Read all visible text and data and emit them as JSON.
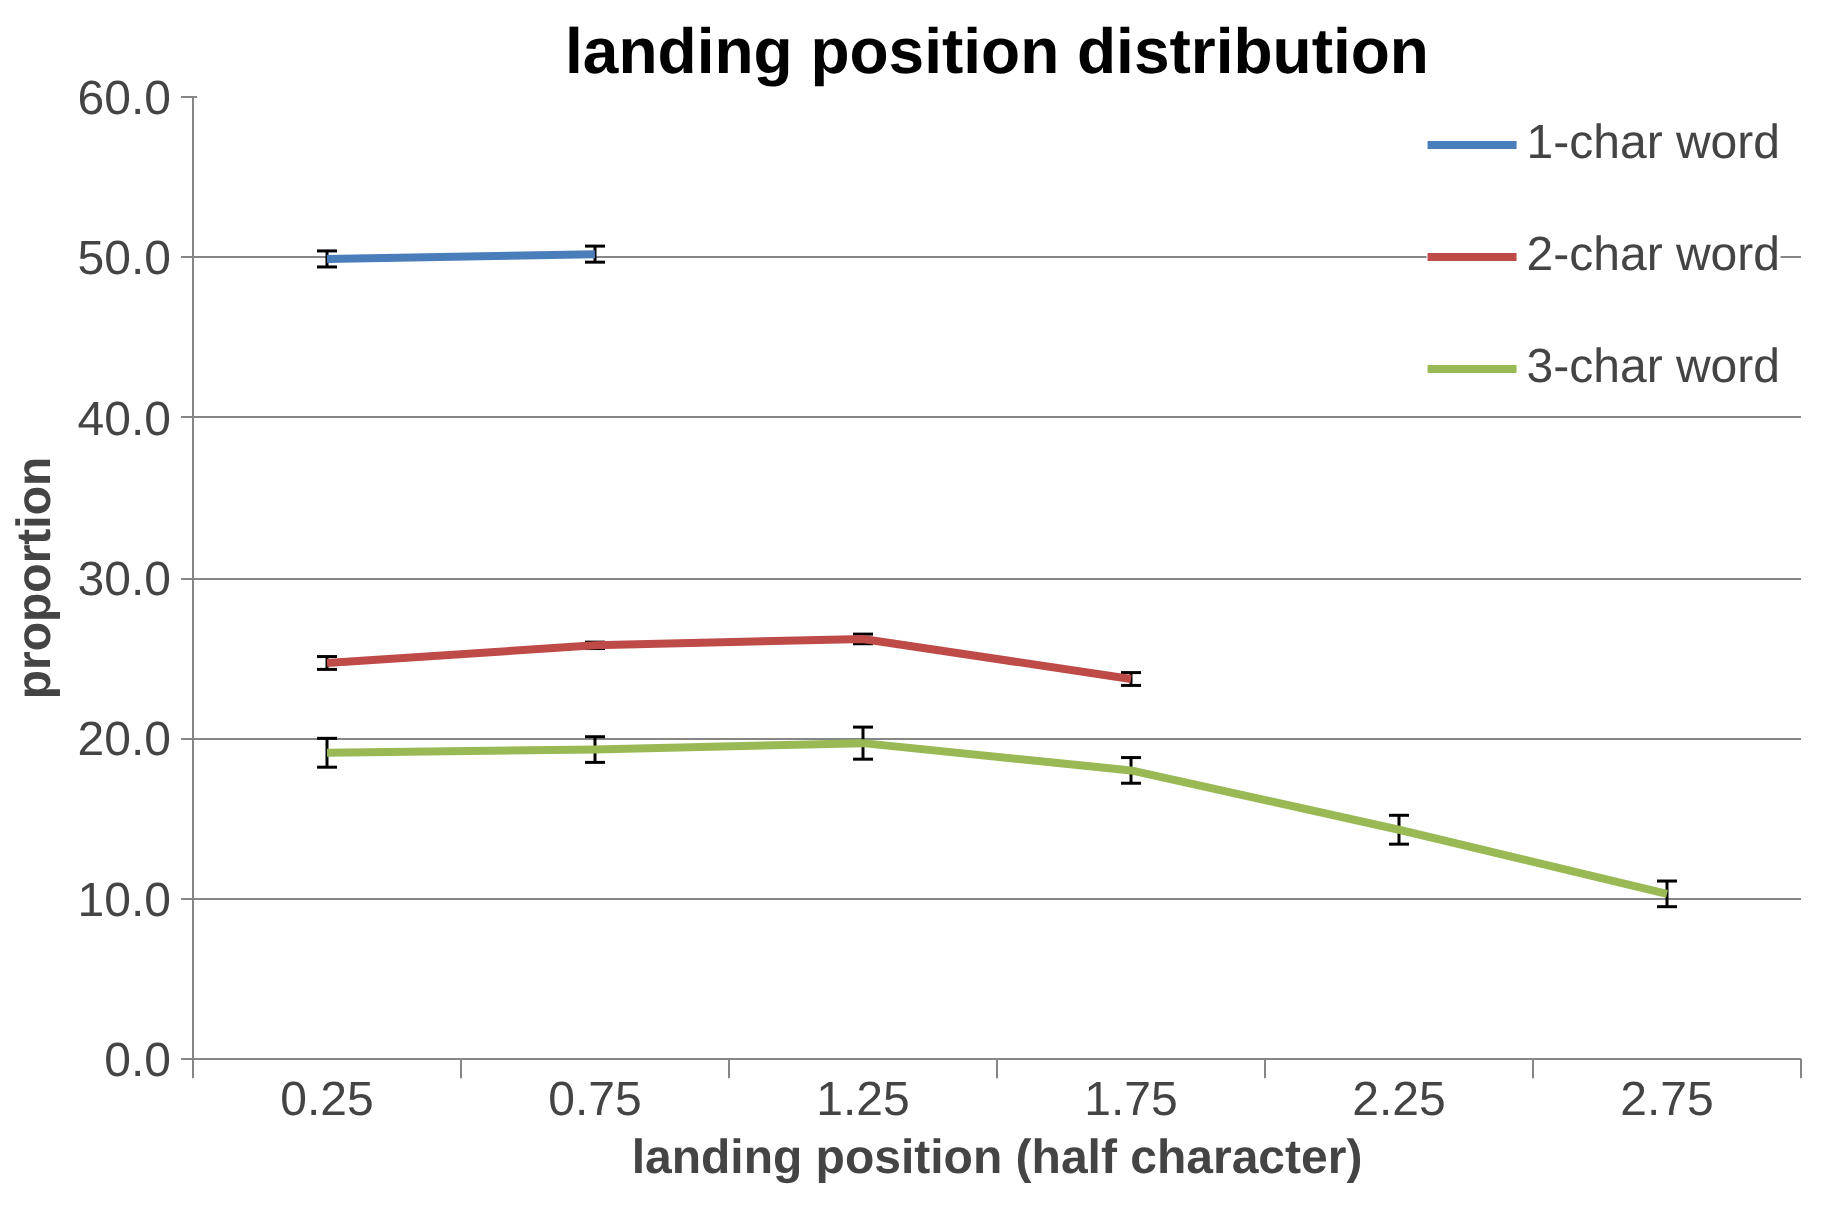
{
  "chart_data": {
    "type": "line",
    "title": "landing position distribution",
    "xlabel": "landing position (half character)",
    "ylabel": "proportion",
    "categories": [
      "0.25",
      "0.75",
      "1.25",
      "1.75",
      "2.25",
      "2.75"
    ],
    "series": [
      {
        "name": "1-char word",
        "color": "#4a7ebb",
        "values": [
          49.9,
          50.2,
          null,
          null,
          null,
          null
        ],
        "errors": [
          0.5,
          0.5,
          null,
          null,
          null,
          null
        ]
      },
      {
        "name": "2-char word",
        "color": "#be4b48",
        "values": [
          24.7,
          25.8,
          26.2,
          23.7,
          null,
          null
        ],
        "errors": [
          0.4,
          0.2,
          0.3,
          0.4,
          null,
          null
        ]
      },
      {
        "name": "3-char word",
        "color": "#98b954",
        "values": [
          19.1,
          19.3,
          19.7,
          18.0,
          14.3,
          10.3
        ],
        "errors": [
          0.9,
          0.8,
          1.0,
          0.8,
          0.9,
          0.8
        ]
      }
    ],
    "ylim": [
      0,
      60
    ],
    "yticks": [
      {
        "value": 0,
        "label": "0.0"
      },
      {
        "value": 10,
        "label": "10.0"
      },
      {
        "value": 20,
        "label": "20.0"
      },
      {
        "value": 30,
        "label": "30.0"
      },
      {
        "value": 40,
        "label": "40.0"
      },
      {
        "value": 50,
        "label": "50.0"
      },
      {
        "value": 60,
        "label": "60.0"
      }
    ],
    "grid": "y",
    "legend": "top right",
    "line_style": "solid"
  }
}
